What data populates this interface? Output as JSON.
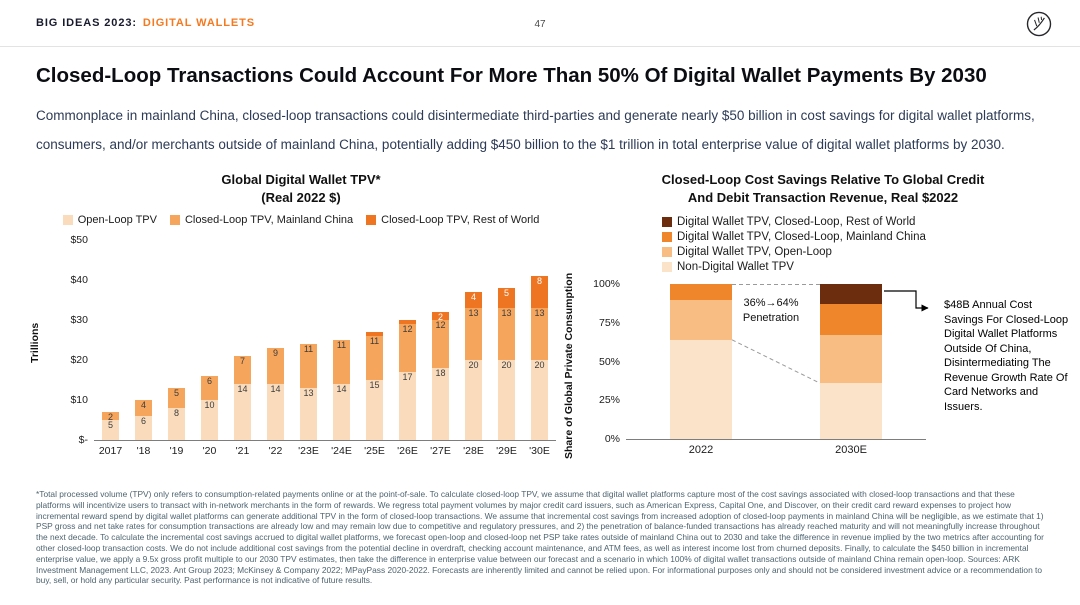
{
  "header": {
    "brand_prefix": "BIG IDEAS 2023:",
    "brand_suffix": "DIGITAL WALLETS",
    "page_number": "47",
    "logo": "ark-invest-logo"
  },
  "title": "Closed-Loop Transactions Could Account For More Than 50% Of Digital Wallet Payments By 2030",
  "subtitle": "Commonplace in mainland China, closed-loop transactions could disintermediate third-parties and generate nearly $50 billion in cost savings for digital wallet platforms, consumers, and/or merchants outside of mainland China, potentially adding $450 billion to the $1 trillion in total enterprise value of digital wallet platforms by 2030.",
  "colors": {
    "accent_orange": "#F4791F",
    "open_loop": "#FADCBD",
    "closed_loop_china": "#F5A55C",
    "closed_loop_row": "#EE7623",
    "closed_loop_row_dark": "#6B2D0E",
    "non_digital": "#FBE3CA",
    "footnote_text": "#4E6470"
  },
  "chart_data": [
    {
      "type": "bar",
      "stacked": true,
      "title": "Global Digital Wallet TPV*",
      "subtitle": "(Real 2022 $)",
      "ylabel": "Trillions",
      "xlabel": "",
      "ylim": [
        0,
        50
      ],
      "ytick_labels": [
        "$-",
        "$10",
        "$20",
        "$30",
        "$40",
        "$50"
      ],
      "grid": false,
      "legend_position": "top",
      "categories": [
        "2017",
        "'18",
        "'19",
        "'20",
        "'21",
        "'22",
        "'23E",
        "'24E",
        "'25E",
        "'26E",
        "'27E",
        "'28E",
        "'29E",
        "'30E"
      ],
      "series": [
        {
          "name": "Open-Loop TPV",
          "color": "#FADCBD",
          "label_color": "#3d3d3d",
          "values": [
            5,
            6,
            8,
            10,
            14,
            14,
            13,
            14,
            15,
            17,
            18,
            20,
            20,
            20
          ]
        },
        {
          "name": "Closed-Loop TPV, Mainland China",
          "color": "#F5A55C",
          "label_color": "#3d3d3d",
          "values": [
            2,
            4,
            5,
            6,
            7,
            9,
            11,
            11,
            11,
            12,
            12,
            13,
            13,
            13
          ]
        },
        {
          "name": "Closed-Loop TPV, Rest of World",
          "color": "#EE7623",
          "label_color": "#ffffff",
          "values": [
            0,
            0,
            0,
            0,
            0,
            0,
            0,
            0,
            1,
            1,
            2,
            4,
            5,
            8
          ]
        }
      ]
    },
    {
      "type": "bar",
      "stacked": true,
      "unit": "percent",
      "title": "Closed-Loop Cost Savings Relative To Global Credit",
      "subtitle": "And Debit Transaction Revenue, Real $2022",
      "ylabel": "Share of Global Private Consumption",
      "xlabel": "",
      "ylim": [
        0,
        100
      ],
      "ytick_labels": [
        "0%",
        "25%",
        "50%",
        "75%",
        "100%"
      ],
      "grid": false,
      "legend_position": "top-left",
      "categories": [
        "2022",
        "2030E"
      ],
      "series": [
        {
          "name": "Non-Digital Wallet TPV",
          "color": "#FBE3CA",
          "values": [
            64,
            36
          ]
        },
        {
          "name": "Digital Wallet TPV, Open-Loop",
          "color": "#F8BD83",
          "values": [
            26,
            31
          ]
        },
        {
          "name": "Digital Wallet TPV, Closed-Loop, Mainland China",
          "color": "#F0862B",
          "values": [
            10,
            20
          ]
        },
        {
          "name": "Digital Wallet TPV, Closed-Loop, Rest of World",
          "color": "#6B2D0E",
          "values": [
            0,
            13
          ]
        }
      ],
      "annotations": {
        "penetration_line1": "36%→64%",
        "penetration_line2": "Penetration",
        "callout": "$48B Annual Cost Savings For Closed-Loop Digital Wallet Platforms Outside Of China, Disintermediating The Revenue Growth Rate Of Card Networks and Issuers."
      }
    }
  ],
  "footnote": "*Total processed volume (TPV) only refers to consumption-related payments online or at the point-of-sale. To calculate closed-loop TPV, we assume that digital wallet platforms capture most of the cost savings associated with closed-loop transactions and that these platforms will incentivize users to transact with in-network merchants in the form of rewards. We regress total payment volumes by major credit card issuers, such as American Express, Capital One, and Discover, on their credit card reward expenses to project how incremental reward spend by digital wallet platforms can generate additional TPV in the form of closed-loop transactions. We assume that incremental cost savings from increased adoption of closed-loop payments in mainland China will be negligible, as we estimate that 1) PSP gross and net take rates for consumption transactions are already low and may remain low due to competitive and regulatory pressures, and 2) the penetration of balance-funded transactions has already reached maturity and will not meaningfully increase throughout the next decade. To calculate the incremental cost savings accrued to digital wallet platforms, we forecast open-loop and closed-loop net PSP take rates outside of mainland China out to 2030 and take the difference in revenue implied by the two metrics after accounting for other closed-loop transaction costs. We do not include additional cost savings from the potential decline in overdraft, checking account maintenance, and ATM fees, as well as interest income lost from churned deposits. Finally, to calculate the $450 billion in incremental enterprise value, we apply a 9.5x gross profit multiple to our 2030 TPV estimates, then take the difference in enterprise value between our forecast and a scenario in which 100% of digital wallet transactions outside of mainland China remain open-loop. Sources: ARK Investment Management LLC, 2023. Ant Group 2023; McKinsey & Company 2022; MPayPass 2020-2022. Forecasts are inherently limited and cannot be relied upon. For informational purposes only and should not be considered investment advice or a recommendation to buy, sell, or hold any particular security. Past performance is not indicative of future results."
}
